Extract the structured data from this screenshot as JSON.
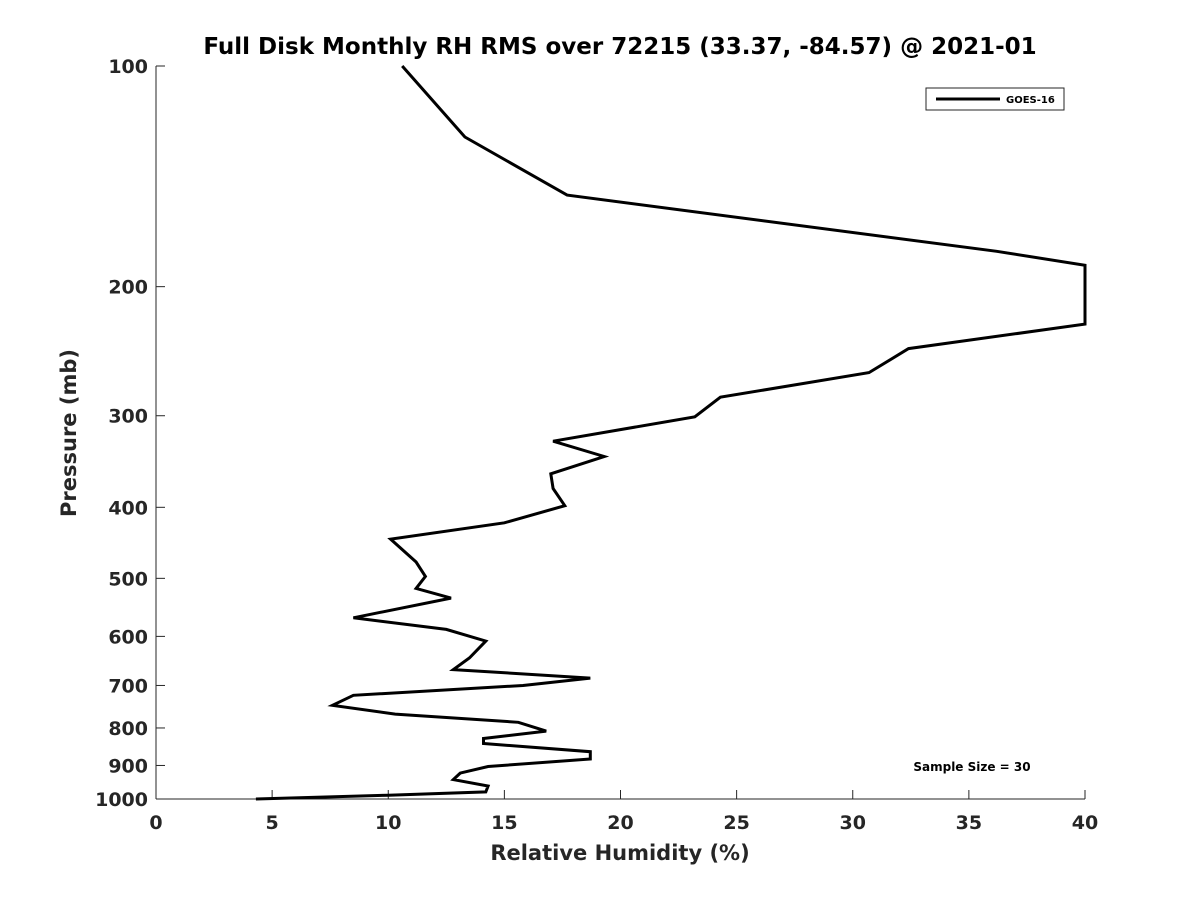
{
  "chart_data": {
    "type": "line",
    "title": "Full Disk Monthly RH RMS over 72215 (33.37, -84.57) @ 2021-01",
    "xlabel": "Relative Humidity (%)",
    "ylabel": "Pressure (mb)",
    "xlim": [
      0,
      40
    ],
    "ylim": [
      100,
      1000
    ],
    "y_scale": "log",
    "y_reversed": true,
    "grid": false,
    "legend_position": "top-right",
    "xticks": [
      0,
      5,
      10,
      15,
      20,
      25,
      30,
      35,
      40
    ],
    "xtick_labels": [
      "0",
      "5",
      "10",
      "15",
      "20",
      "25",
      "30",
      "35",
      "40"
    ],
    "yticks": [
      100,
      200,
      300,
      400,
      500,
      600,
      700,
      800,
      900,
      1000
    ],
    "ytick_labels": [
      "100",
      "200",
      "300",
      "400",
      "500",
      "600",
      "700",
      "800",
      "900",
      "1000"
    ],
    "annotation": "Sample Size = 30",
    "series": [
      {
        "name": "GOES-16",
        "color": "#000000",
        "points": [
          [
            10.6,
            100
          ],
          [
            13.3,
            125
          ],
          [
            17.7,
            150
          ],
          [
            36.2,
            179
          ],
          [
            40.0,
            187
          ],
          [
            40.0,
            225
          ],
          [
            32.4,
            243
          ],
          [
            30.7,
            262
          ],
          [
            24.3,
            283
          ],
          [
            23.2,
            301
          ],
          [
            17.1,
            325
          ],
          [
            19.3,
            341
          ],
          [
            17.0,
            360
          ],
          [
            17.1,
            377
          ],
          [
            17.6,
            398
          ],
          [
            15.0,
            420
          ],
          [
            10.1,
            442
          ],
          [
            11.2,
            475
          ],
          [
            11.6,
            497
          ],
          [
            11.2,
            516
          ],
          [
            12.7,
            532
          ],
          [
            8.5,
            566
          ],
          [
            12.5,
            587
          ],
          [
            14.2,
            609
          ],
          [
            13.5,
            642
          ],
          [
            12.8,
            666
          ],
          [
            18.7,
            684
          ],
          [
            15.8,
            700
          ],
          [
            8.5,
            722
          ],
          [
            7.6,
            745
          ],
          [
            10.3,
            766
          ],
          [
            15.6,
            786
          ],
          [
            16.8,
            808
          ],
          [
            14.1,
            827
          ],
          [
            14.1,
            840
          ],
          [
            18.7,
            862
          ],
          [
            18.7,
            882
          ],
          [
            14.3,
            903
          ],
          [
            13.1,
            922
          ],
          [
            12.8,
            941
          ],
          [
            14.3,
            960
          ],
          [
            14.2,
            978
          ],
          [
            10.0,
            988
          ],
          [
            4.3,
            1000
          ]
        ]
      }
    ]
  }
}
